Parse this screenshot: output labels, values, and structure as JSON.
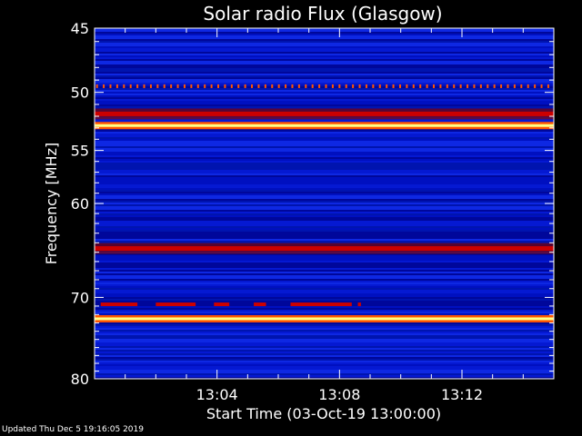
{
  "chart_data": {
    "type": "heatmap",
    "title": "Solar radio Flux (Glasgow)",
    "xlabel": "Start Time (03-Oct-19 13:00:00)",
    "ylabel": "Frequency [MHz]",
    "x_ticks": [
      "13:04",
      "13:08",
      "13:12"
    ],
    "x_tick_minutes": [
      4,
      8,
      12
    ],
    "xlim_minutes": [
      0,
      15
    ],
    "y_ticks": [
      45,
      50,
      55,
      60,
      70,
      80
    ],
    "ylim_mhz": [
      45,
      80
    ],
    "y_scale": "log",
    "colormap": [
      "#00007a",
      "#0010c0",
      "#1a3cff",
      "#cc0000",
      "#ff5500",
      "#ffff88"
    ],
    "background_intensity": "low",
    "bands": [
      {
        "freq_mhz": 49.5,
        "level": "intermittent-spikes"
      },
      {
        "freq_mhz": 51.8,
        "level": "strong"
      },
      {
        "freq_mhz": 52.8,
        "level": "saturated"
      },
      {
        "freq_mhz": 64.6,
        "level": "strong"
      },
      {
        "freq_mhz": 72.5,
        "level": "saturated"
      }
    ],
    "bursts": [
      {
        "freq_mhz": 70.8,
        "start_min": 0.2,
        "end_min": 1.4
      },
      {
        "freq_mhz": 70.8,
        "start_min": 2.0,
        "end_min": 3.3
      },
      {
        "freq_mhz": 70.8,
        "start_min": 3.9,
        "end_min": 4.4
      },
      {
        "freq_mhz": 70.8,
        "start_min": 5.2,
        "end_min": 5.6
      },
      {
        "freq_mhz": 70.8,
        "start_min": 6.4,
        "end_min": 8.4
      },
      {
        "freq_mhz": 70.8,
        "start_min": 8.6,
        "end_min": 8.7
      }
    ]
  },
  "footer": "Updated Thu Dec  5 19:16:05 2019"
}
